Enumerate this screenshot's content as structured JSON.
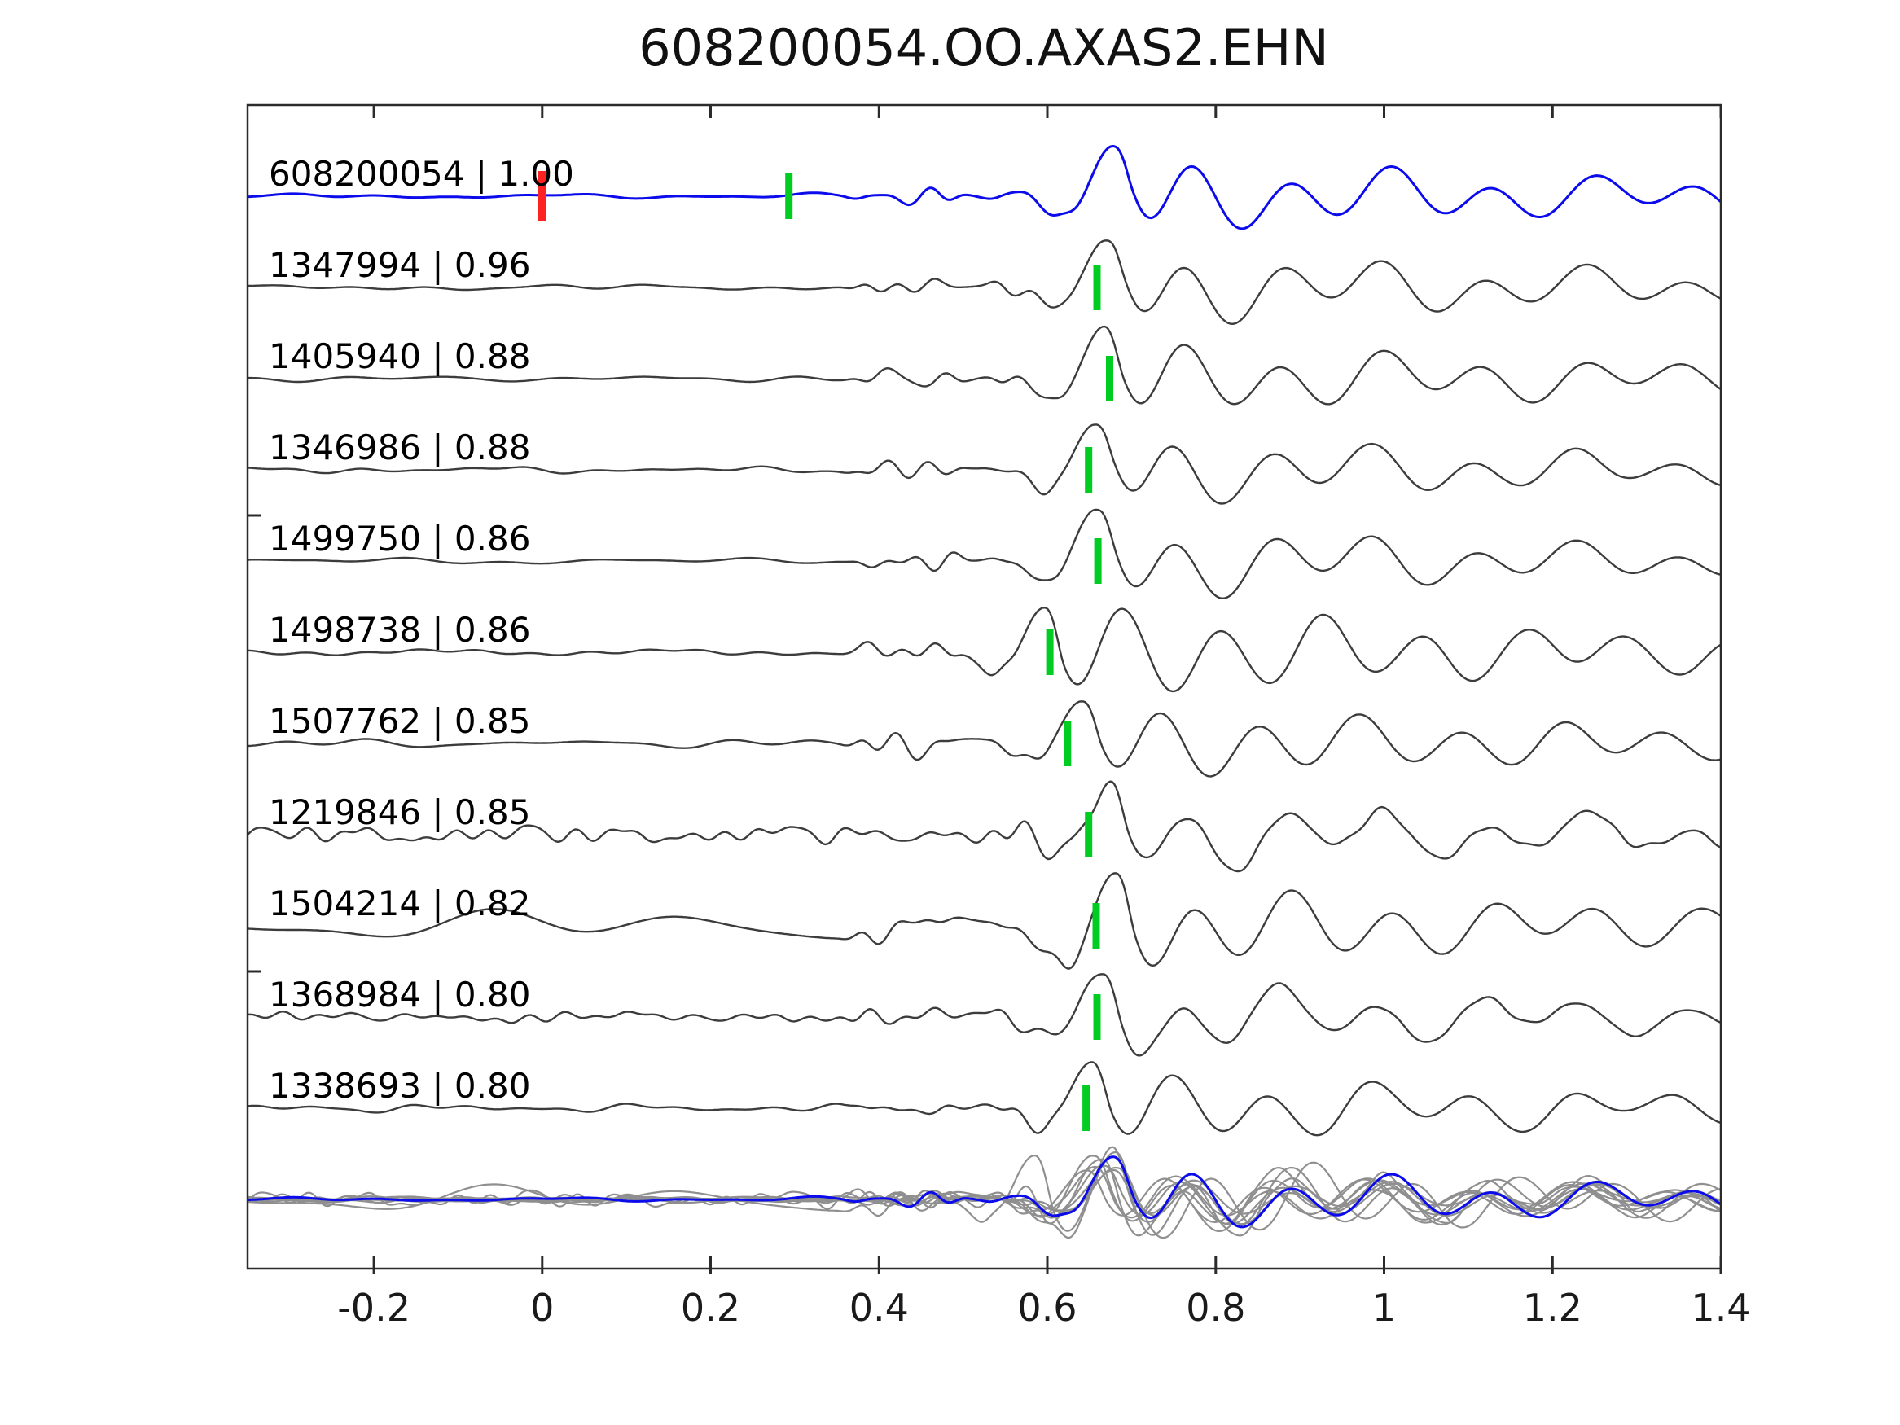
{
  "title": "608200054.OO.AXAS2.EHN",
  "colors": {
    "background": "#FFFFFF",
    "template_trace": "#0B0BEB",
    "match_trace": "#3C3C3C",
    "overlay_trace": "#8F8F8F",
    "pick_marker_green": "#00CC22",
    "pick_marker_red": "#FF2222",
    "axis_line": "#2B2B2B",
    "text": "#000000"
  },
  "chart_data": {
    "type": "line",
    "title": "608200054.OO.AXAS2.EHN",
    "xlabel": "",
    "ylabel": "",
    "xlim": [
      -0.35,
      1.4
    ],
    "grid": false,
    "legend": "none",
    "xticks": [
      {
        "value": -0.2,
        "label": "-0.2"
      },
      {
        "value": 0.0,
        "label": "0"
      },
      {
        "value": 0.2,
        "label": "0.2"
      },
      {
        "value": 0.4,
        "label": "0.4"
      },
      {
        "value": 0.6,
        "label": "0.6"
      },
      {
        "value": 0.8,
        "label": "0.8"
      },
      {
        "value": 1.0,
        "label": "1"
      },
      {
        "value": 1.2,
        "label": "1.2"
      },
      {
        "value": 1.4,
        "label": "1.4"
      }
    ],
    "left_axis_tick_y": [
      633,
      1193
    ],
    "rows": 12,
    "series": [
      {
        "row": 1,
        "id": "608200054",
        "correlation": "1.00",
        "label": "608200054 | 1.00",
        "role": "template",
        "picks": [
          {
            "time": 0.0,
            "color": "red"
          },
          {
            "time": 0.293,
            "color": "green"
          }
        ],
        "waveform": {
          "seed": 17,
          "pre_noise": 1.5,
          "pre_freq": 3.2,
          "mid_noise": 8,
          "hf_noise": 0,
          "arrival_time": 0.678,
          "arrival_amp": 62,
          "trough_factor": 0.62,
          "pre_trough": 0
        }
      },
      {
        "row": 2,
        "id": "1347994",
        "correlation": "0.96",
        "label": "1347994 | 0.96",
        "role": "match",
        "picks": [
          {
            "time": 0.659,
            "color": "green"
          }
        ],
        "waveform": {
          "seed": 23,
          "pre_noise": 1.6,
          "pre_freq": 3.0,
          "mid_noise": 9,
          "hf_noise": 0,
          "arrival_time": 0.669,
          "arrival_amp": 60,
          "trough_factor": 0.62,
          "pre_trough": 0
        }
      },
      {
        "row": 3,
        "id": "1405940",
        "correlation": "0.88",
        "label": "1405940 | 0.88",
        "role": "match",
        "picks": [
          {
            "time": 0.674,
            "color": "green"
          }
        ],
        "waveform": {
          "seed": 31,
          "pre_noise": 1.8,
          "pre_freq": 3.4,
          "mid_noise": 10,
          "hf_noise": 0,
          "arrival_time": 0.667,
          "arrival_amp": 62,
          "trough_factor": 0.62,
          "pre_trough": 0
        }
      },
      {
        "row": 4,
        "id": "1346986",
        "correlation": "0.88",
        "label": "1346986 | 0.88",
        "role": "match",
        "picks": [
          {
            "time": 0.649,
            "color": "green"
          }
        ],
        "waveform": {
          "seed": 41,
          "pre_noise": 1.8,
          "pre_freq": 3.0,
          "mid_noise": 11,
          "hf_noise": 0,
          "arrival_time": 0.656,
          "arrival_amp": 58,
          "trough_factor": 0.62,
          "pre_trough": 0
        }
      },
      {
        "row": 5,
        "id": "1499750",
        "correlation": "0.86",
        "label": "1499750 | 0.86",
        "role": "match",
        "picks": [
          {
            "time": 0.66,
            "color": "green"
          }
        ],
        "waveform": {
          "seed": 53,
          "pre_noise": 1.8,
          "pre_freq": 3.1,
          "mid_noise": 10,
          "hf_noise": 0,
          "arrival_time": 0.658,
          "arrival_amp": 60,
          "trough_factor": 0.62,
          "pre_trough": 0
        }
      },
      {
        "row": 6,
        "id": "1498738",
        "correlation": "0.86",
        "label": "1498738 | 0.86",
        "role": "match",
        "picks": [
          {
            "time": 0.603,
            "color": "green"
          }
        ],
        "waveform": {
          "seed": 61,
          "pre_noise": 2.4,
          "pre_freq": 3.6,
          "mid_noise": 12,
          "hf_noise": 0,
          "arrival_time": 0.596,
          "arrival_amp": 55,
          "trough_factor": 1.0,
          "pre_trough": 0
        }
      },
      {
        "row": 7,
        "id": "1507762",
        "correlation": "0.85",
        "label": "1507762 | 0.85",
        "role": "match",
        "picks": [
          {
            "time": 0.624,
            "color": "green"
          }
        ],
        "waveform": {
          "seed": 71,
          "pre_noise": 2.4,
          "pre_freq": 3.3,
          "mid_noise": 11,
          "hf_noise": 0,
          "arrival_time": 0.641,
          "arrival_amp": 52,
          "trough_factor": 0.8,
          "pre_trough": 0
        }
      },
      {
        "row": 8,
        "id": "1219846",
        "correlation": "0.85",
        "label": "1219846 | 0.85",
        "role": "match",
        "picks": [
          {
            "time": 0.649,
            "color": "green"
          }
        ],
        "waveform": {
          "seed": 83,
          "pre_noise": 3.0,
          "pre_freq": 3.0,
          "mid_noise": 13,
          "hf_noise": 9,
          "arrival_time": 0.672,
          "arrival_amp": 58,
          "trough_factor": 0.62,
          "pre_trough": 0
        }
      },
      {
        "row": 9,
        "id": "1504214",
        "correlation": "0.82",
        "label": "1504214 | 0.82",
        "role": "match",
        "picks": [
          {
            "time": 0.658,
            "color": "green"
          }
        ],
        "waveform": {
          "seed": 97,
          "pre_noise": 8.0,
          "pre_freq": 1.5,
          "mid_noise": 9,
          "hf_noise": 0,
          "arrival_time": 0.68,
          "arrival_amp": 55,
          "trough_factor": 0.8,
          "pre_trough": 30
        }
      },
      {
        "row": 10,
        "id": "1368984",
        "correlation": "0.80",
        "label": "1368984 | 0.80",
        "role": "match",
        "picks": [
          {
            "time": 0.659,
            "color": "green"
          }
        ],
        "waveform": {
          "seed": 103,
          "pre_noise": 2.0,
          "pre_freq": 3.0,
          "mid_noise": 10,
          "hf_noise": 5,
          "arrival_time": 0.664,
          "arrival_amp": 56,
          "trough_factor": 0.62,
          "pre_trough": 0
        }
      },
      {
        "row": 11,
        "id": "1338693",
        "correlation": "0.80",
        "label": "1338693 | 0.80",
        "role": "match",
        "picks": [
          {
            "time": 0.646,
            "color": "green"
          }
        ],
        "waveform": {
          "seed": 113,
          "pre_noise": 2.2,
          "pre_freq": 4.0,
          "mid_noise": 9,
          "hf_noise": 0,
          "arrival_time": 0.653,
          "arrival_amp": 58,
          "trough_factor": 0.62,
          "pre_trough": 0
        }
      }
    ],
    "overlay_row": {
      "row": 12,
      "scale": 0.85,
      "template_on_top": true
    }
  }
}
